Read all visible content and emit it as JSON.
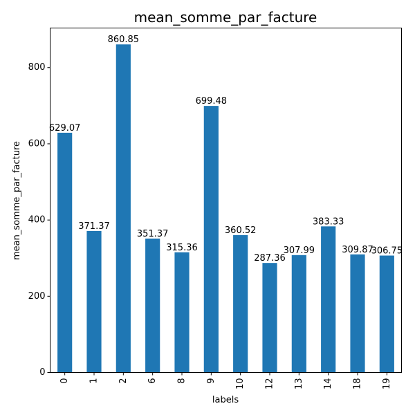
{
  "chart_data": {
    "type": "bar",
    "title": "mean_somme_par_facture",
    "xlabel": "labels",
    "ylabel": "mean_somme_par_facture",
    "categories": [
      "0",
      "1",
      "2",
      "6",
      "8",
      "9",
      "10",
      "12",
      "13",
      "14",
      "18",
      "19"
    ],
    "values": [
      629.07,
      371.37,
      860.85,
      351.37,
      315.36,
      699.48,
      360.52,
      287.36,
      307.99,
      383.33,
      309.87,
      306.75
    ],
    "data_labels": [
      "629.07",
      "371.37",
      "860.85",
      "351.37",
      "315.36",
      "699.48",
      "360.52",
      "287.36",
      "307.99",
      "383.33",
      "309.87",
      "306.75"
    ],
    "ylim": [
      0,
      903.9
    ],
    "yticks": [
      0,
      200,
      400,
      600,
      800
    ],
    "bar_color": "#1f77b4",
    "grid": false,
    "legend": "none"
  }
}
